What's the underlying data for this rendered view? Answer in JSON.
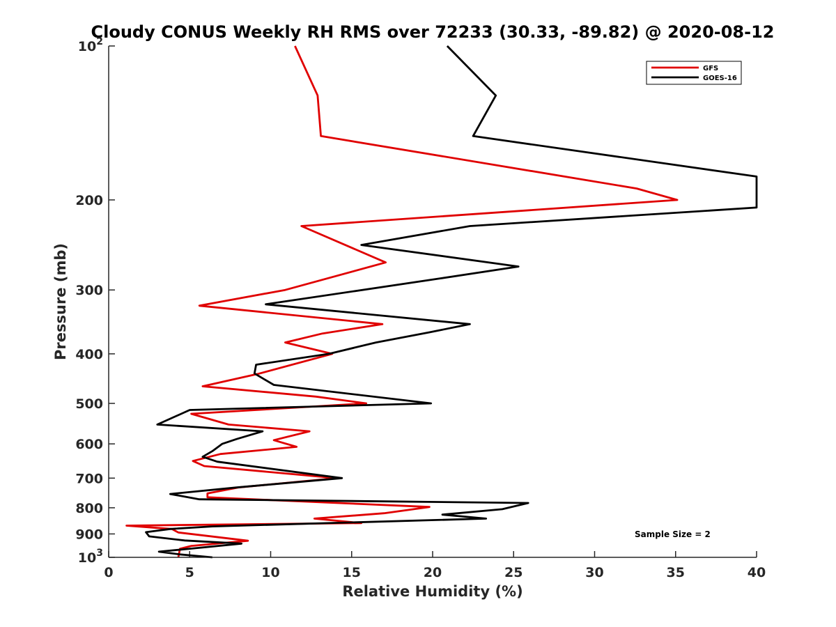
{
  "chart_data": {
    "type": "line",
    "title": "Cloudy CONUS Weekly RH RMS over 72233 (30.33, -89.82) @ 2020-08-12",
    "xlabel": "Relative Humidity (%)",
    "ylabel": "Pressure (mb)",
    "xlim": [
      0,
      40
    ],
    "ylim": [
      100,
      1000
    ],
    "yscale": "log",
    "y_reversed": true,
    "x_ticks": [
      0,
      5,
      10,
      15,
      20,
      25,
      30,
      35,
      40
    ],
    "y_ticks": [
      {
        "value": 100,
        "base": "10",
        "exp": "2"
      },
      {
        "value": 200,
        "label": "200"
      },
      {
        "value": 300,
        "label": "300"
      },
      {
        "value": 400,
        "label": "400"
      },
      {
        "value": 500,
        "label": "500"
      },
      {
        "value": 600,
        "label": "600"
      },
      {
        "value": 700,
        "label": "700"
      },
      {
        "value": 800,
        "label": "800"
      },
      {
        "value": 900,
        "label": "900"
      },
      {
        "value": 1000,
        "base": "10",
        "exp": "3"
      }
    ],
    "legend_position": "top-right",
    "annotation": "Sample Size = 2",
    "series": [
      {
        "name": "GFS",
        "color": "#e00000",
        "points": [
          [
            11.5,
            100
          ],
          [
            12.9,
            125
          ],
          [
            13.1,
            150
          ],
          [
            32.6,
            190
          ],
          [
            35.1,
            200
          ],
          [
            11.9,
            225
          ],
          [
            17.1,
            265
          ],
          [
            10.9,
            300
          ],
          [
            5.6,
            322
          ],
          [
            16.9,
            350
          ],
          [
            13.2,
            365
          ],
          [
            10.9,
            380
          ],
          [
            13.8,
            400
          ],
          [
            9.2,
            438
          ],
          [
            5.8,
            463
          ],
          [
            12.8,
            485
          ],
          [
            15.9,
            500
          ],
          [
            5.1,
            524
          ],
          [
            7.4,
            550
          ],
          [
            12.4,
            567
          ],
          [
            10.2,
            590
          ],
          [
            11.6,
            608
          ],
          [
            6.9,
            628
          ],
          [
            5.2,
            648
          ],
          [
            5.9,
            663
          ],
          [
            14.1,
            700
          ],
          [
            8.0,
            730
          ],
          [
            6.1,
            750
          ],
          [
            6.1,
            763
          ],
          [
            19.8,
            797
          ],
          [
            17.0,
            820
          ],
          [
            12.7,
            840
          ],
          [
            15.6,
            857
          ],
          [
            1.1,
            867
          ],
          [
            3.9,
            880
          ],
          [
            4.3,
            894
          ],
          [
            8.6,
            928
          ],
          [
            5.1,
            950
          ],
          [
            4.4,
            962
          ],
          [
            4.3,
            1000
          ]
        ]
      },
      {
        "name": "GOES-16",
        "color": "#000000",
        "points": [
          [
            20.9,
            100
          ],
          [
            23.9,
            125
          ],
          [
            22.5,
            150
          ],
          [
            40.0,
            180
          ],
          [
            40.0,
            207
          ],
          [
            22.3,
            225
          ],
          [
            15.6,
            245
          ],
          [
            25.3,
            270
          ],
          [
            20.4,
            285
          ],
          [
            9.7,
            320
          ],
          [
            22.3,
            350
          ],
          [
            19.8,
            363
          ],
          [
            16.5,
            380
          ],
          [
            13.6,
            400
          ],
          [
            9.1,
            420
          ],
          [
            9.0,
            437
          ],
          [
            10.2,
            460
          ],
          [
            19.9,
            500
          ],
          [
            5.0,
            515
          ],
          [
            3.0,
            550
          ],
          [
            9.5,
            567
          ],
          [
            7.9,
            587
          ],
          [
            7.0,
            600
          ],
          [
            6.4,
            620
          ],
          [
            5.8,
            636
          ],
          [
            6.7,
            650
          ],
          [
            14.4,
            700
          ],
          [
            7.9,
            730
          ],
          [
            3.8,
            752
          ],
          [
            5.6,
            770
          ],
          [
            25.9,
            783
          ],
          [
            24.3,
            805
          ],
          [
            20.6,
            825
          ],
          [
            23.3,
            840
          ],
          [
            6.4,
            870
          ],
          [
            3.8,
            880
          ],
          [
            2.3,
            893
          ],
          [
            2.5,
            910
          ],
          [
            4.7,
            927
          ],
          [
            8.2,
            940
          ],
          [
            5.3,
            960
          ],
          [
            3.1,
            975
          ],
          [
            4.4,
            987
          ],
          [
            6.4,
            1000
          ]
        ]
      }
    ]
  }
}
